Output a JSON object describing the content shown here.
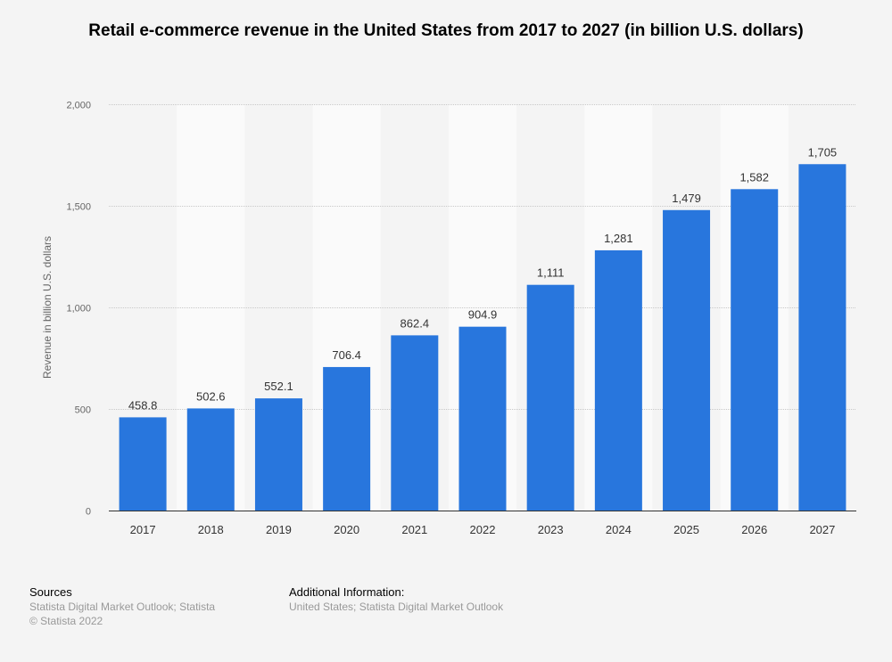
{
  "chart_data": {
    "type": "bar",
    "title": "Retail e-commerce revenue in the United States from 2017 to 2027 (in billion U.S. dollars)",
    "xlabel": "",
    "ylabel": "Revenue in billion U.S. dollars",
    "categories": [
      "2017",
      "2018",
      "2019",
      "2020",
      "2021",
      "2022",
      "2023",
      "2024",
      "2025",
      "2026",
      "2027"
    ],
    "values": [
      458.8,
      502.6,
      552.1,
      706.4,
      862.4,
      904.9,
      1111,
      1281,
      1479,
      1582,
      1705
    ],
    "data_labels": [
      "458.8",
      "502.6",
      "552.1",
      "706.4",
      "862.4",
      "904.9",
      "1,111",
      "1,281",
      "1,479",
      "1,582",
      "1,705"
    ],
    "ylim": [
      0,
      2000
    ],
    "yticks": [
      0,
      500,
      1000,
      1500,
      2000
    ],
    "ytick_labels": [
      "0",
      "500",
      "1,000",
      "1,500",
      "2,000"
    ],
    "grid": true,
    "bar_color": "#2876dd"
  },
  "footer": {
    "sources_heading": "Sources",
    "sources_line1": "Statista Digital Market Outlook; Statista",
    "sources_line2": "© Statista 2022",
    "additional_heading": "Additional Information:",
    "additional_text": "United States; Statista Digital Market Outlook"
  }
}
